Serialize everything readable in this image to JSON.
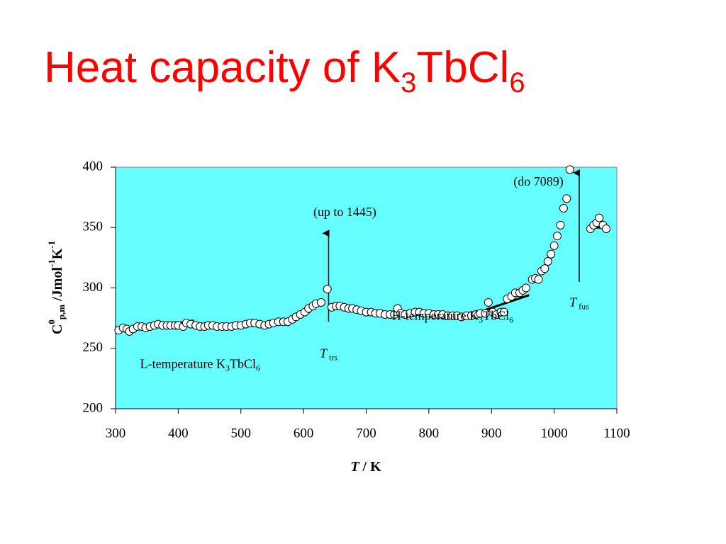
{
  "chart_data": {
    "type": "scatter",
    "title": {
      "parts": [
        {
          "text": "Heat capacity of K"
        },
        {
          "text": "3",
          "shift": "sub"
        },
        {
          "text": "TbCl"
        },
        {
          "text": "6",
          "shift": "sub"
        }
      ]
    },
    "x_label": {
      "parts": [
        {
          "text": "T",
          "style": "italic"
        },
        {
          "text": "  / K"
        }
      ]
    },
    "y_label": {
      "parts": [
        {
          "text": "C"
        },
        {
          "text": "0",
          "shift": "super"
        },
        {
          "text": "p,m",
          "shift": "sub"
        },
        {
          "text": " /Jmol"
        },
        {
          "text": "-1",
          "shift": "super"
        },
        {
          "text": "K"
        },
        {
          "text": "-1",
          "shift": "super"
        }
      ]
    },
    "xlim": [
      300,
      1100
    ],
    "xticks": [
      300,
      400,
      500,
      600,
      700,
      800,
      900,
      1000,
      1100
    ],
    "ylim": [
      200,
      400
    ],
    "yticks": [
      200,
      250,
      300,
      350,
      400
    ],
    "background": "#66ffff",
    "marker_color": "#ffffff",
    "series": [
      {
        "x": [
          305,
          312,
          318,
          322,
          328,
          335,
          342,
          348,
          355,
          362,
          368,
          375,
          382,
          388,
          395,
          400,
          408,
          413,
          420,
          428,
          435,
          442,
          448,
          455,
          462,
          470,
          477,
          485,
          492,
          500,
          508,
          515,
          522,
          530,
          538,
          545,
          552,
          560,
          568,
          575,
          582,
          588,
          595,
          602,
          608,
          615,
          620,
          628,
          638,
          645,
          652,
          658,
          665,
          672,
          678,
          685,
          692,
          700,
          708,
          715,
          722,
          730,
          738,
          745,
          750,
          755,
          762,
          770,
          778,
          785,
          792,
          800,
          808,
          815,
          822,
          830,
          838,
          845,
          852,
          860,
          868,
          875,
          882,
          890,
          895,
          902,
          908,
          915,
          920,
          925,
          932,
          938,
          945,
          950,
          955,
          965,
          970,
          975,
          980,
          985,
          990,
          995,
          1000,
          1005,
          1010,
          1015,
          1020,
          1025,
          1058,
          1063,
          1068,
          1072,
          1078,
          1083
        ],
        "values": [
          265,
          267,
          266,
          264,
          266,
          268,
          268,
          267,
          268,
          269,
          270,
          269,
          269,
          269,
          269,
          269,
          268,
          271,
          270,
          269,
          268,
          268,
          269,
          269,
          268,
          268,
          268,
          268,
          269,
          269,
          270,
          271,
          271,
          270,
          269,
          270,
          271,
          272,
          272,
          272,
          274,
          276,
          278,
          280,
          283,
          285,
          287,
          288,
          299,
          284,
          285,
          285,
          284,
          283,
          283,
          282,
          281,
          280,
          280,
          279,
          279,
          278,
          278,
          278,
          283,
          279,
          278,
          279,
          280,
          280,
          279,
          279,
          278,
          278,
          278,
          277,
          277,
          277,
          276,
          277,
          277,
          278,
          279,
          279,
          288,
          280,
          278,
          280,
          280,
          291,
          293,
          296,
          296,
          298,
          300,
          307,
          308,
          307,
          314,
          316,
          322,
          328,
          335,
          343,
          352,
          366,
          374,
          398,
          349,
          352,
          354,
          358,
          352,
          349
        ]
      }
    ],
    "lines": [
      {
        "x": [
          400,
          425
        ],
        "y": [
          271,
          273
        ]
      },
      {
        "x": [
          575,
          610
        ],
        "y": [
          273,
          280
        ]
      },
      {
        "x": [
          880,
          960
        ],
        "y": [
          280,
          294
        ]
      },
      {
        "x": [
          1065,
          1080
        ],
        "y": [
          350,
          350
        ]
      }
    ],
    "arrows": [
      {
        "x": 640,
        "y": [
          272,
          350
        ]
      },
      {
        "x": 1040,
        "y": [
          305,
          400
        ]
      }
    ],
    "annotations": [
      {
        "x": 666,
        "y": 362,
        "parts": [
          {
            "text": "(up to 1445)"
          }
        ]
      },
      {
        "x": 975,
        "y": 387,
        "parts": [
          {
            "text": "(do 7089)"
          }
        ]
      },
      {
        "x": 640,
        "y": 245,
        "parts": [
          {
            "text": "T",
            "style": "italic"
          },
          {
            "text": " trs",
            "shift": "sub"
          }
        ]
      },
      {
        "x": 1040,
        "y": 287,
        "parts": [
          {
            "text": "T",
            "style": "italic"
          },
          {
            "text": " fus",
            "shift": "sub"
          }
        ]
      },
      {
        "x": 838,
        "y": 276,
        "parts": [
          {
            "text": "H-temperature K"
          },
          {
            "text": "3",
            "shift": "sub"
          },
          {
            "text": "TbCl"
          },
          {
            "text": "6",
            "shift": "sub"
          }
        ]
      },
      {
        "x": 435,
        "y": 236,
        "parts": [
          {
            "text": "L-temperature K"
          },
          {
            "text": "3",
            "shift": "sub"
          },
          {
            "text": "TbCl"
          },
          {
            "text": "6",
            "shift": "sub"
          }
        ]
      }
    ]
  }
}
